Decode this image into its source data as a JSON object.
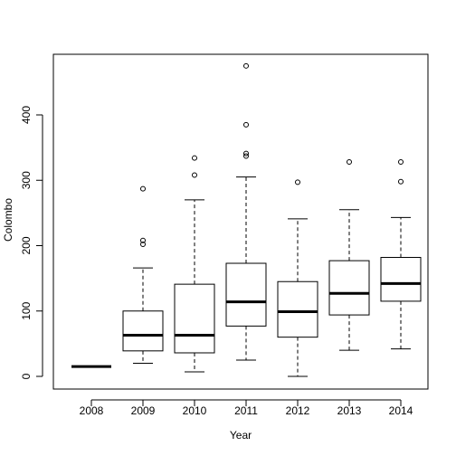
{
  "chart_data": {
    "type": "boxplot",
    "title": "",
    "xlabel": "Year",
    "ylabel": "Colombo",
    "ylim": [
      -20,
      490
    ],
    "yticks": [
      0,
      100,
      200,
      300,
      400
    ],
    "categories": [
      "2008",
      "2009",
      "2010",
      "2011",
      "2012",
      "2013",
      "2014"
    ],
    "boxes": [
      {
        "category": "2008",
        "whisker_low": 15,
        "q1": 15,
        "median": 15,
        "q3": 15,
        "whisker_high": 15,
        "outliers": []
      },
      {
        "category": "2009",
        "whisker_low": 20,
        "q1": 39,
        "median": 63,
        "q3": 100,
        "whisker_high": 166,
        "outliers": [
          202,
          208,
          287
        ]
      },
      {
        "category": "2010",
        "whisker_low": 7,
        "q1": 36,
        "median": 63,
        "q3": 141,
        "whisker_high": 270,
        "outliers": [
          308,
          334
        ]
      },
      {
        "category": "2011",
        "whisker_low": 25,
        "q1": 77,
        "median": 114,
        "q3": 173,
        "whisker_high": 305,
        "outliers": [
          337,
          341,
          385,
          475
        ]
      },
      {
        "category": "2012",
        "whisker_low": 0,
        "q1": 60,
        "median": 99,
        "q3": 145,
        "whisker_high": 241,
        "outliers": [
          297
        ]
      },
      {
        "category": "2013",
        "whisker_low": 40,
        "q1": 94,
        "median": 127,
        "q3": 177,
        "whisker_high": 255,
        "outliers": [
          328
        ]
      },
      {
        "category": "2014",
        "whisker_low": 42,
        "q1": 115,
        "median": 142,
        "q3": 182,
        "whisker_high": 243,
        "outliers": [
          298,
          328
        ]
      }
    ],
    "grid": false,
    "legend": "none"
  }
}
